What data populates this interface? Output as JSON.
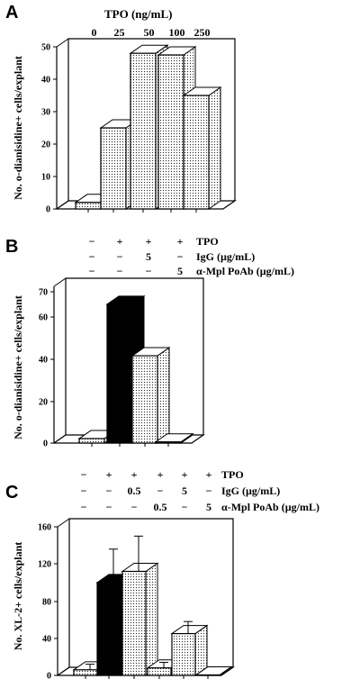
{
  "palette": {
    "stipple_fill": "#ffffff",
    "stipple_dot": "#222222",
    "solid": "#000000",
    "stroke": "#000000"
  },
  "chart_data": [
    {
      "panel": "A",
      "type": "bar",
      "title": "TPO (ng/mL)",
      "categories": [
        "0",
        "25",
        "50",
        "100",
        "250"
      ],
      "values": [
        2,
        25,
        48,
        47.5,
        35
      ],
      "fills": [
        "stipple",
        "stipple",
        "stipple",
        "stipple",
        "stipple"
      ],
      "ylabel": "No. o-dianisidine+ cells/explant",
      "yticks": [
        "0",
        "10",
        "20",
        "30",
        "40",
        "50"
      ],
      "ylim": [
        0,
        50
      ]
    },
    {
      "panel": "B",
      "type": "bar",
      "condition_rows": [
        {
          "label": "TPO",
          "signs": [
            "−",
            "+",
            "+",
            "+"
          ]
        },
        {
          "label": "IgG (µg/mL)",
          "signs": [
            "−",
            "−",
            "5",
            "−"
          ]
        },
        {
          "label": "α-Mpl PoAb (µg/mL)",
          "signs": [
            "−",
            "−",
            "−",
            "5"
          ]
        }
      ],
      "values": [
        2,
        62,
        39,
        0.5
      ],
      "fills": [
        "stipple",
        "solid",
        "stipple",
        "stipple"
      ],
      "ylabel": "No. o-dianisidine+ cells/explant",
      "yticks": [
        "0",
        "20",
        "40",
        "60",
        "70"
      ],
      "ylim": [
        0,
        70
      ]
    },
    {
      "panel": "C",
      "type": "bar",
      "condition_rows": [
        {
          "label": "TPO",
          "signs": [
            "−",
            "+",
            "+",
            "+",
            "+",
            "+"
          ]
        },
        {
          "label": "IgG (µg/mL)",
          "signs": [
            "−",
            "−",
            "0.5",
            "−",
            "5",
            "−"
          ]
        },
        {
          "label": "α-Mpl PoAb (µg/mL)",
          "signs": [
            "−",
            "−",
            "−",
            "0.5",
            "−",
            "5"
          ]
        }
      ],
      "values": [
        6,
        100,
        112,
        8,
        45,
        0.5
      ],
      "errors": [
        6,
        36,
        38,
        6,
        13,
        0
      ],
      "fills": [
        "stipple",
        "solid",
        "stipple",
        "stipple",
        "stipple",
        "stipple"
      ],
      "ylabel": "No. XL-2+ cells/explant",
      "yticks": [
        "0",
        "40",
        "80",
        "120",
        "160"
      ],
      "ylim": [
        0,
        160
      ]
    }
  ]
}
